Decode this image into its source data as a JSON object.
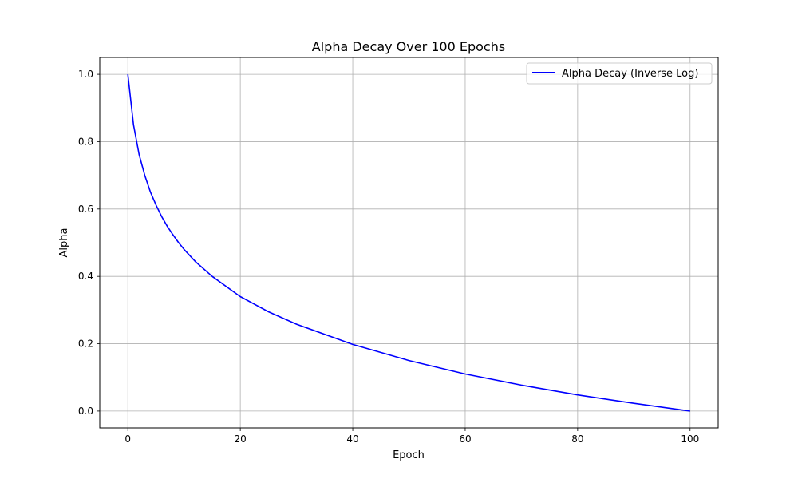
{
  "chart_data": {
    "type": "line",
    "title": "Alpha Decay Over 100 Epochs",
    "xlabel": "Epoch",
    "ylabel": "Alpha",
    "xlim": [
      -5,
      105
    ],
    "ylim": [
      -0.05,
      1.05
    ],
    "x_ticks": [
      0,
      20,
      40,
      60,
      80,
      100
    ],
    "x_tick_labels": [
      "0",
      "20",
      "40",
      "60",
      "80",
      "100"
    ],
    "y_ticks": [
      0.0,
      0.2,
      0.4,
      0.6,
      0.8,
      1.0
    ],
    "y_tick_labels": [
      "0.0",
      "0.2",
      "0.4",
      "0.6",
      "0.8",
      "1.0"
    ],
    "grid": true,
    "legend_position": "top-right",
    "series": [
      {
        "name": "Alpha Decay (Inverse Log)",
        "color": "#0000ff",
        "x": [
          0,
          1,
          2,
          3,
          4,
          5,
          6,
          7,
          8,
          9,
          10,
          12,
          15,
          20,
          25,
          30,
          40,
          50,
          60,
          70,
          80,
          90,
          100
        ],
        "y": [
          1.0,
          0.85,
          0.762,
          0.7,
          0.651,
          0.612,
          0.578,
          0.549,
          0.524,
          0.501,
          0.48,
          0.444,
          0.4,
          0.34,
          0.295,
          0.258,
          0.198,
          0.15,
          0.11,
          0.077,
          0.048,
          0.023,
          0.0
        ]
      }
    ]
  }
}
